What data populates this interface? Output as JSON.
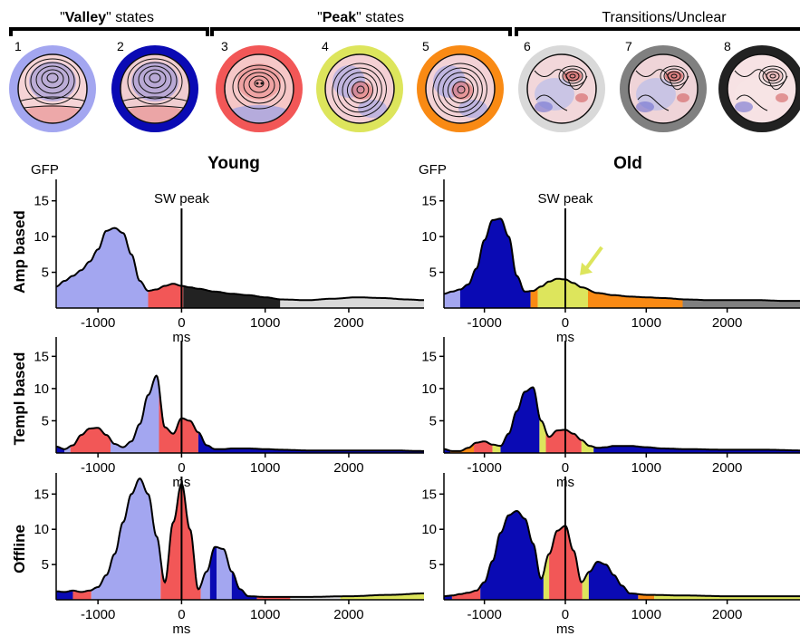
{
  "header": {
    "groups": [
      {
        "pre": "\"",
        "bold": "Valley",
        "post": "\" states"
      },
      {
        "pre": "\"",
        "bold": "Peak",
        "post": "\" states"
      },
      {
        "pre": "",
        "bold": "",
        "post": "Transitions/Unclear"
      }
    ]
  },
  "colors": {
    "lavender": "#a3a6f0",
    "navy": "#0a0ab4",
    "red": "#f25757",
    "yellow": "#dde55c",
    "orange": "#f98a14",
    "lightgray": "#d9d9d9",
    "gray": "#808080",
    "black": "#222222",
    "young_title": "#1a7fc1",
    "old_title": "#b01515"
  },
  "states": [
    {
      "num": "1",
      "ring": "lavender"
    },
    {
      "num": "2",
      "ring": "navy"
    },
    {
      "num": "3",
      "ring": "red"
    },
    {
      "num": "4",
      "ring": "yellow"
    },
    {
      "num": "5",
      "ring": "orange"
    },
    {
      "num": "6",
      "ring": "lightgray"
    },
    {
      "num": "7",
      "ring": "gray"
    },
    {
      "num": "8",
      "ring": "black"
    }
  ],
  "columns": [
    "Young",
    "Old"
  ],
  "row_labels": [
    "Amp based",
    "Templ based",
    "Offline"
  ],
  "axis": {
    "ylabel": "GFP",
    "xlabel": "ms",
    "xticks": [
      "-1000",
      "0",
      "1000",
      "2000"
    ],
    "yticks": [
      "5",
      "10",
      "15"
    ],
    "sw_label": "SW peak"
  },
  "chart_data": [
    {
      "type": "area",
      "group": "Young",
      "method": "Amp based",
      "xlim": [
        -1500,
        2900
      ],
      "ylim": [
        0,
        18
      ],
      "x": [
        -1500,
        -1400,
        -1300,
        -1200,
        -1100,
        -1000,
        -900,
        -800,
        -700,
        -600,
        -500,
        -400,
        -300,
        -200,
        -100,
        0,
        100,
        200,
        400,
        600,
        800,
        1000,
        1200,
        1500,
        1800,
        2100,
        2400,
        2700,
        2900
      ],
      "y": [
        3.0,
        3.8,
        4.5,
        5.3,
        6.5,
        8.2,
        10.8,
        11.2,
        10.5,
        7.5,
        3.8,
        2.4,
        2.6,
        3.1,
        3.4,
        3.1,
        2.9,
        2.7,
        2.3,
        2.0,
        1.8,
        1.5,
        1.2,
        1.1,
        1.3,
        1.5,
        1.4,
        1.2,
        1.1
      ],
      "segments": [
        {
          "from": -1500,
          "to": -400,
          "state": "lavender"
        },
        {
          "from": -400,
          "to": 20,
          "state": "red"
        },
        {
          "from": 20,
          "to": 1180,
          "state": "black"
        },
        {
          "from": 1180,
          "to": 2900,
          "state": "lightgray"
        }
      ],
      "sw_peak": 0
    },
    {
      "type": "area",
      "group": "Old",
      "method": "Amp based",
      "xlim": [
        -1500,
        2900
      ],
      "ylim": [
        0,
        18
      ],
      "x": [
        -1500,
        -1400,
        -1300,
        -1200,
        -1100,
        -1000,
        -900,
        -800,
        -700,
        -600,
        -500,
        -400,
        -300,
        -200,
        -100,
        0,
        100,
        200,
        400,
        600,
        800,
        1000,
        1200,
        1500,
        1800,
        2100,
        2400,
        2700,
        2900
      ],
      "y": [
        2.0,
        2.3,
        2.6,
        3.3,
        5.5,
        9.5,
        12.3,
        12.5,
        10.0,
        4.5,
        2.3,
        2.4,
        3.0,
        3.7,
        4.1,
        4.0,
        3.5,
        2.9,
        2.1,
        1.8,
        1.6,
        1.5,
        1.4,
        1.2,
        1.1,
        1.1,
        1.1,
        1.0,
        1.0
      ],
      "segments": [
        {
          "from": -1500,
          "to": -1300,
          "state": "lavender"
        },
        {
          "from": -1300,
          "to": -430,
          "state": "navy"
        },
        {
          "from": -430,
          "to": -340,
          "state": "orange"
        },
        {
          "from": -340,
          "to": 280,
          "state": "yellow"
        },
        {
          "from": 280,
          "to": 1450,
          "state": "orange"
        },
        {
          "from": 1450,
          "to": 2900,
          "state": "gray"
        }
      ],
      "sw_peak": 0,
      "arrow_color": "yellow"
    },
    {
      "type": "area",
      "group": "Young",
      "method": "Templ based",
      "xlim": [
        -1500,
        2900
      ],
      "ylim": [
        0,
        18
      ],
      "x": [
        -1500,
        -1400,
        -1300,
        -1200,
        -1100,
        -1000,
        -900,
        -800,
        -700,
        -600,
        -500,
        -400,
        -300,
        -200,
        -100,
        0,
        100,
        200,
        300,
        400,
        500,
        600,
        800,
        1000,
        1200,
        1500,
        2000,
        2500,
        2900
      ],
      "y": [
        1.0,
        0.6,
        1.2,
        2.8,
        3.8,
        3.9,
        2.8,
        1.4,
        0.9,
        1.8,
        4.5,
        9.0,
        12.0,
        4.0,
        3.0,
        5.4,
        5.0,
        3.2,
        1.2,
        0.6,
        0.6,
        0.7,
        0.7,
        0.6,
        0.5,
        0.4,
        0.4,
        0.4,
        0.3
      ],
      "segments": [
        {
          "from": -1500,
          "to": -1400,
          "state": "navy"
        },
        {
          "from": -1400,
          "to": -1330,
          "state": "lavender"
        },
        {
          "from": -1330,
          "to": -850,
          "state": "red"
        },
        {
          "from": -850,
          "to": -270,
          "state": "lavender"
        },
        {
          "from": -270,
          "to": 200,
          "state": "red"
        },
        {
          "from": 200,
          "to": 2900,
          "state": "navy"
        }
      ],
      "sw_peak": 0
    },
    {
      "type": "area",
      "group": "Old",
      "method": "Templ based",
      "xlim": [
        -1500,
        2900
      ],
      "ylim": [
        0,
        18
      ],
      "x": [
        -1500,
        -1400,
        -1300,
        -1200,
        -1100,
        -1000,
        -900,
        -800,
        -700,
        -600,
        -500,
        -400,
        -300,
        -200,
        -100,
        0,
        100,
        200,
        300,
        400,
        500,
        600,
        800,
        1000,
        1200,
        1500,
        2000,
        2500,
        2900
      ],
      "y": [
        0.6,
        0.3,
        0.3,
        0.8,
        1.6,
        1.8,
        1.3,
        1.1,
        3.0,
        6.5,
        9.5,
        10.2,
        5.0,
        2.5,
        3.5,
        3.6,
        3.0,
        2.0,
        1.1,
        0.8,
        0.9,
        1.1,
        1.1,
        0.9,
        0.7,
        0.6,
        0.5,
        0.5,
        0.4
      ],
      "segments": [
        {
          "from": -1500,
          "to": -1420,
          "state": "navy"
        },
        {
          "from": -1420,
          "to": -1130,
          "state": "orange"
        },
        {
          "from": -1130,
          "to": -900,
          "state": "red"
        },
        {
          "from": -900,
          "to": -800,
          "state": "yellow"
        },
        {
          "from": -800,
          "to": -320,
          "state": "navy"
        },
        {
          "from": -320,
          "to": -240,
          "state": "yellow"
        },
        {
          "from": -240,
          "to": 200,
          "state": "red"
        },
        {
          "from": 200,
          "to": 350,
          "state": "yellow"
        },
        {
          "from": 350,
          "to": 2900,
          "state": "navy"
        }
      ],
      "sw_peak": 0
    },
    {
      "type": "area",
      "group": "Young",
      "method": "Offline",
      "xlim": [
        -1500,
        2900
      ],
      "ylim": [
        0,
        18
      ],
      "x": [
        -1500,
        -1400,
        -1300,
        -1200,
        -1100,
        -1000,
        -900,
        -800,
        -700,
        -600,
        -500,
        -400,
        -300,
        -200,
        -100,
        0,
        100,
        200,
        300,
        400,
        500,
        600,
        700,
        800,
        1000,
        1500,
        2000,
        2500,
        2900
      ],
      "y": [
        1.2,
        1.1,
        1.3,
        1.1,
        1.3,
        1.8,
        3.5,
        6.5,
        11.0,
        15.0,
        17.2,
        15.0,
        9.0,
        2.5,
        11.0,
        16.5,
        10.0,
        1.5,
        4.0,
        7.5,
        7.2,
        4.0,
        1.5,
        0.5,
        0.4,
        0.4,
        0.5,
        0.7,
        0.9
      ],
      "segments": [
        {
          "from": -1500,
          "to": -1300,
          "state": "navy"
        },
        {
          "from": -1300,
          "to": -1080,
          "state": "red"
        },
        {
          "from": -1080,
          "to": -250,
          "state": "lavender"
        },
        {
          "from": -250,
          "to": 230,
          "state": "red"
        },
        {
          "from": 230,
          "to": 340,
          "state": "lavender"
        },
        {
          "from": 340,
          "to": 420,
          "state": "navy"
        },
        {
          "from": 420,
          "to": 600,
          "state": "lavender"
        },
        {
          "from": 600,
          "to": 900,
          "state": "navy"
        },
        {
          "from": 900,
          "to": 1300,
          "state": "red"
        },
        {
          "from": 1300,
          "to": 1900,
          "state": "lightgray"
        },
        {
          "from": 1900,
          "to": 2900,
          "state": "yellow"
        }
      ],
      "sw_peak": 0
    },
    {
      "type": "area",
      "group": "Old",
      "method": "Offline",
      "xlim": [
        -1500,
        2900
      ],
      "ylim": [
        0,
        18
      ],
      "x": [
        -1500,
        -1400,
        -1300,
        -1200,
        -1100,
        -1000,
        -900,
        -800,
        -700,
        -600,
        -500,
        -400,
        -300,
        -200,
        -100,
        0,
        100,
        200,
        300,
        400,
        500,
        600,
        700,
        800,
        1000,
        1500,
        2000,
        2500,
        2900
      ],
      "y": [
        0.5,
        0.6,
        0.8,
        1.0,
        1.3,
        2.5,
        5.5,
        9.5,
        12.0,
        12.6,
        11.5,
        8.0,
        3.0,
        6.5,
        9.8,
        10.5,
        7.0,
        2.5,
        4.0,
        5.4,
        5.0,
        3.5,
        2.0,
        0.9,
        0.7,
        0.6,
        0.5,
        0.5,
        0.5
      ],
      "segments": [
        {
          "from": -1500,
          "to": -1400,
          "state": "navy"
        },
        {
          "from": -1400,
          "to": -1050,
          "state": "red"
        },
        {
          "from": -1050,
          "to": -270,
          "state": "navy"
        },
        {
          "from": -270,
          "to": -200,
          "state": "yellow"
        },
        {
          "from": -200,
          "to": 210,
          "state": "red"
        },
        {
          "from": 210,
          "to": 290,
          "state": "yellow"
        },
        {
          "from": 290,
          "to": 900,
          "state": "navy"
        },
        {
          "from": 900,
          "to": 1100,
          "state": "orange"
        },
        {
          "from": 1100,
          "to": 2900,
          "state": "yellow"
        }
      ],
      "sw_peak": 0
    }
  ]
}
